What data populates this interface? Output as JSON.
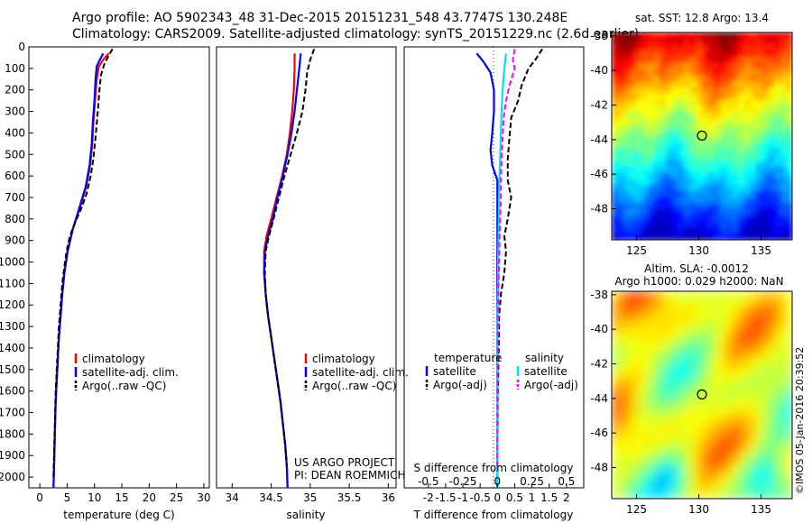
{
  "header": {
    "line1": "Argo profile: AO 5902343_48 31-Dec-2015 20151231_548 43.7747S 130.248E",
    "line2": "Climatology: CARS2009. Satellite-adjusted climatology: synTS_20151229.nc (2.6d earlier)"
  },
  "credits": {
    "project": "US ARGO PROJECT",
    "pi": "PI: DEAN ROEMMICH",
    "stamp": "©IMOS 05-Jan-2016 20:39:52"
  },
  "chart_data": [
    {
      "type": "line",
      "xlabel": "temperature (deg C)",
      "xlim": [
        -2,
        31
      ],
      "ylim": [
        2050,
        0
      ],
      "xticks": [
        "0",
        "5",
        "10",
        "15",
        "20",
        "25",
        "30"
      ],
      "yticks": [
        "0",
        "100",
        "200",
        "300",
        "400",
        "500",
        "600",
        "700",
        "800",
        "900",
        "1000",
        "1100",
        "1200",
        "1300",
        "1400",
        "1500",
        "1600",
        "1700",
        "1800",
        "1900",
        "2000"
      ],
      "legend": [
        "climatology",
        "satellite-adj. clim.",
        "Argo(..raw -QC)"
      ],
      "series": [
        {
          "name": "climatology",
          "color": "#ff0000",
          "dash": "",
          "points": [
            [
              12.6,
              30
            ],
            [
              11.6,
              60
            ],
            [
              10.8,
              90
            ],
            [
              10.4,
              150
            ],
            [
              10.1,
              250
            ],
            [
              9.8,
              350
            ],
            [
              9.6,
              450
            ],
            [
              9.2,
              550
            ],
            [
              8.5,
              650
            ],
            [
              7.3,
              750
            ],
            [
              6.0,
              850
            ],
            [
              5.1,
              950
            ],
            [
              4.5,
              1050
            ],
            [
              4.1,
              1150
            ],
            [
              3.8,
              1250
            ],
            [
              3.5,
              1350
            ],
            [
              3.3,
              1450
            ],
            [
              3.1,
              1550
            ],
            [
              2.9,
              1650
            ],
            [
              2.8,
              1750
            ],
            [
              2.7,
              1850
            ],
            [
              2.6,
              1950
            ],
            [
              2.5,
              2050
            ]
          ]
        },
        {
          "name": "satellite-adj. clim.",
          "color": "#0000ff",
          "dash": "",
          "points": [
            [
              11.6,
              30
            ],
            [
              11.0,
              60
            ],
            [
              10.4,
              90
            ],
            [
              10.2,
              150
            ],
            [
              10.0,
              250
            ],
            [
              9.7,
              350
            ],
            [
              9.5,
              450
            ],
            [
              9.1,
              550
            ],
            [
              8.4,
              650
            ],
            [
              7.2,
              750
            ],
            [
              6.0,
              850
            ],
            [
              5.1,
              950
            ],
            [
              4.5,
              1050
            ],
            [
              4.1,
              1150
            ],
            [
              3.8,
              1250
            ],
            [
              3.5,
              1350
            ],
            [
              3.3,
              1450
            ],
            [
              3.1,
              1550
            ],
            [
              2.9,
              1650
            ],
            [
              2.8,
              1750
            ],
            [
              2.7,
              1850
            ],
            [
              2.6,
              1950
            ],
            [
              2.5,
              2050
            ]
          ]
        },
        {
          "name": "Argo(..raw -QC)",
          "color": "#000000",
          "dash": "6 3",
          "points": [
            [
              13.3,
              10
            ],
            [
              12.6,
              40
            ],
            [
              11.8,
              80
            ],
            [
              11.2,
              130
            ],
            [
              10.9,
              200
            ],
            [
              10.6,
              300
            ],
            [
              10.2,
              420
            ],
            [
              9.8,
              520
            ],
            [
              9.3,
              600
            ],
            [
              8.6,
              680
            ],
            [
              7.6,
              750
            ],
            [
              6.4,
              820
            ],
            [
              5.5,
              880
            ],
            [
              4.9,
              950
            ],
            [
              4.5,
              1020
            ],
            [
              4.1,
              1100
            ],
            [
              3.8,
              1200
            ],
            [
              3.5,
              1300
            ],
            [
              3.3,
              1400
            ],
            [
              3.1,
              1500
            ],
            [
              2.9,
              1600
            ],
            [
              2.8,
              1700
            ],
            [
              2.7,
              1800
            ],
            [
              2.6,
              1900
            ],
            [
              2.5,
              2000
            ]
          ]
        }
      ]
    },
    {
      "type": "line",
      "xlabel": "salinity",
      "xlim": [
        33.8,
        36.1
      ],
      "ylim": [
        2050,
        0
      ],
      "xticks": [
        "34",
        "34.5",
        "35",
        "35.5",
        "36"
      ],
      "legend": [
        "climatology",
        "satellite-adj. clim.",
        "Argo(..raw -QC)"
      ],
      "series": [
        {
          "name": "climatology",
          "color": "#ff0000",
          "dash": "",
          "points": [
            [
              34.8,
              30
            ],
            [
              34.8,
              100
            ],
            [
              34.79,
              200
            ],
            [
              34.77,
              300
            ],
            [
              34.74,
              400
            ],
            [
              34.7,
              500
            ],
            [
              34.64,
              600
            ],
            [
              34.57,
              700
            ],
            [
              34.5,
              800
            ],
            [
              34.44,
              880
            ],
            [
              34.41,
              950
            ],
            [
              34.41,
              1050
            ],
            [
              34.43,
              1150
            ],
            [
              34.46,
              1250
            ],
            [
              34.5,
              1350
            ],
            [
              34.54,
              1450
            ],
            [
              34.58,
              1550
            ],
            [
              34.62,
              1650
            ],
            [
              34.65,
              1750
            ],
            [
              34.68,
              1850
            ],
            [
              34.7,
              1950
            ],
            [
              34.71,
              2050
            ]
          ]
        },
        {
          "name": "satellite-adj. clim.",
          "color": "#0000ff",
          "dash": "",
          "points": [
            [
              34.88,
              30
            ],
            [
              34.86,
              100
            ],
            [
              34.83,
              200
            ],
            [
              34.8,
              300
            ],
            [
              34.76,
              400
            ],
            [
              34.71,
              500
            ],
            [
              34.65,
              600
            ],
            [
              34.58,
              700
            ],
            [
              34.52,
              800
            ],
            [
              34.46,
              880
            ],
            [
              34.42,
              950
            ],
            [
              34.41,
              1050
            ],
            [
              34.43,
              1150
            ],
            [
              34.46,
              1250
            ],
            [
              34.5,
              1350
            ],
            [
              34.54,
              1450
            ],
            [
              34.58,
              1550
            ],
            [
              34.62,
              1650
            ],
            [
              34.65,
              1750
            ],
            [
              34.68,
              1850
            ],
            [
              34.7,
              1950
            ],
            [
              34.71,
              2050
            ]
          ]
        },
        {
          "name": "Argo(..raw -QC)",
          "color": "#000000",
          "dash": "6 3",
          "points": [
            [
              35.05,
              10
            ],
            [
              35.0,
              60
            ],
            [
              34.96,
              120
            ],
            [
              34.94,
              200
            ],
            [
              34.9,
              300
            ],
            [
              34.83,
              400
            ],
            [
              34.75,
              500
            ],
            [
              34.67,
              600
            ],
            [
              34.6,
              700
            ],
            [
              34.53,
              800
            ],
            [
              34.47,
              880
            ],
            [
              34.43,
              950
            ],
            [
              34.42,
              1050
            ],
            [
              34.43,
              1150
            ],
            [
              34.46,
              1250
            ],
            [
              34.5,
              1350
            ],
            [
              34.54,
              1450
            ],
            [
              34.58,
              1550
            ],
            [
              34.62,
              1650
            ],
            [
              34.65,
              1750
            ],
            [
              34.68,
              1850
            ],
            [
              34.7,
              1950
            ]
          ]
        }
      ]
    },
    {
      "type": "line",
      "xlabel": "T difference from climatology",
      "toplabel": "S difference from climatology",
      "xlim": [
        -2.7,
        2.5
      ],
      "ylim": [
        2050,
        0
      ],
      "xticks": [
        "-2",
        "-1.5",
        "-1",
        "-0.5",
        "0",
        "0.5",
        "1",
        "1.5",
        "2"
      ],
      "stick_labels": [
        "-0.5",
        "-0.25",
        "0",
        "0.25",
        "0.5"
      ],
      "legend_left_title": "temperature",
      "legend_right_title": "salinity",
      "legend": [
        "satellite",
        "Argo(-adj)",
        "satellite",
        "Argo(-adj)"
      ],
      "series": [
        {
          "name": "satellite",
          "color": "#0000ff",
          "dash": "",
          "points": [
            [
              -0.6,
              30
            ],
            [
              -0.4,
              70
            ],
            [
              -0.2,
              120
            ],
            [
              -0.1,
              200
            ],
            [
              -0.1,
              300
            ],
            [
              -0.15,
              400
            ],
            [
              -0.2,
              480
            ],
            [
              -0.15,
              550
            ],
            [
              0,
              620
            ],
            [
              0,
              700
            ],
            [
              0,
              800
            ],
            [
              0,
              900
            ],
            [
              0,
              1000
            ],
            [
              0,
              1100
            ],
            [
              0,
              1200
            ],
            [
              0,
              1300
            ],
            [
              0,
              1400
            ],
            [
              0,
              1500
            ],
            [
              0,
              1600
            ],
            [
              0,
              1700
            ],
            [
              0,
              1800
            ],
            [
              0,
              1900
            ],
            [
              0,
              2050
            ]
          ]
        },
        {
          "name": "Argo(-adj)",
          "color": "#000000",
          "dash": "6 3",
          "points": [
            [
              1.3,
              10
            ],
            [
              1.1,
              60
            ],
            [
              0.9,
              100
            ],
            [
              0.7,
              180
            ],
            [
              0.6,
              250
            ],
            [
              0.4,
              330
            ],
            [
              0.35,
              420
            ],
            [
              0.3,
              520
            ],
            [
              0.3,
              620
            ],
            [
              0.4,
              700
            ],
            [
              0.3,
              800
            ],
            [
              0.2,
              880
            ],
            [
              0.25,
              950
            ],
            [
              0.2,
              1050
            ],
            [
              0.1,
              1150
            ],
            [
              0.05,
              1250
            ],
            [
              0.05,
              1350
            ],
            [
              0.03,
              1450
            ],
            [
              0.02,
              1550
            ],
            [
              0.01,
              1650
            ],
            [
              0.01,
              1750
            ],
            [
              0,
              1850
            ],
            [
              0,
              1950
            ]
          ]
        },
        {
          "name": "satellite",
          "color": "#00e5e5",
          "dash": "",
          "points": [
            [
              0.25,
              30
            ],
            [
              0.2,
              100
            ],
            [
              0.15,
              200
            ],
            [
              0.12,
              300
            ],
            [
              0.1,
              400
            ],
            [
              0.08,
              500
            ],
            [
              0.06,
              600
            ],
            [
              0.05,
              700
            ],
            [
              0.04,
              800
            ],
            [
              0.03,
              900
            ],
            [
              0.02,
              1000
            ],
            [
              0.02,
              1100
            ],
            [
              0.01,
              1200
            ],
            [
              0,
              1400
            ],
            [
              0,
              1600
            ],
            [
              0,
              1800
            ],
            [
              0,
              2050
            ]
          ]
        },
        {
          "name": "Argo(-adj)",
          "color": "#ff00ff",
          "dash": "6 3",
          "points": [
            [
              0.5,
              10
            ],
            [
              0.45,
              60
            ],
            [
              0.5,
              100
            ],
            [
              0.35,
              180
            ],
            [
              0.25,
              250
            ],
            [
              0.18,
              330
            ],
            [
              0.15,
              420
            ],
            [
              0.12,
              520
            ],
            [
              0.1,
              620
            ],
            [
              0.1,
              700
            ],
            [
              0.08,
              800
            ],
            [
              0.06,
              900
            ],
            [
              0.05,
              1000
            ],
            [
              0.03,
              1100
            ],
            [
              0.02,
              1200
            ],
            [
              0.01,
              1400
            ],
            [
              0,
              1600
            ],
            [
              0,
              1800
            ],
            [
              0,
              1950
            ]
          ]
        }
      ]
    },
    {
      "type": "heatmap",
      "title": "sat. SST: 12.8  Argo: 13.4",
      "xlim": [
        123,
        137.5
      ],
      "ylim": [
        -49.8,
        -37.8
      ],
      "xticks": [
        "125",
        "130",
        "135"
      ],
      "yticks": [
        "-38",
        "-40",
        "-42",
        "-44",
        "-46",
        "-48"
      ],
      "marker": [
        130.25,
        -43.77
      ]
    },
    {
      "type": "heatmap",
      "title": "Altim. SLA: -0.0012",
      "subtitle": "Argo h1000: 0.029  h2000: NaN",
      "xlim": [
        123,
        137.5
      ],
      "ylim": [
        -49.8,
        -37.8
      ],
      "xticks": [
        "125",
        "130",
        "135"
      ],
      "yticks": [
        "-38",
        "-40",
        "-42",
        "-44",
        "-46",
        "-48"
      ],
      "marker": [
        130.25,
        -43.77
      ]
    }
  ]
}
